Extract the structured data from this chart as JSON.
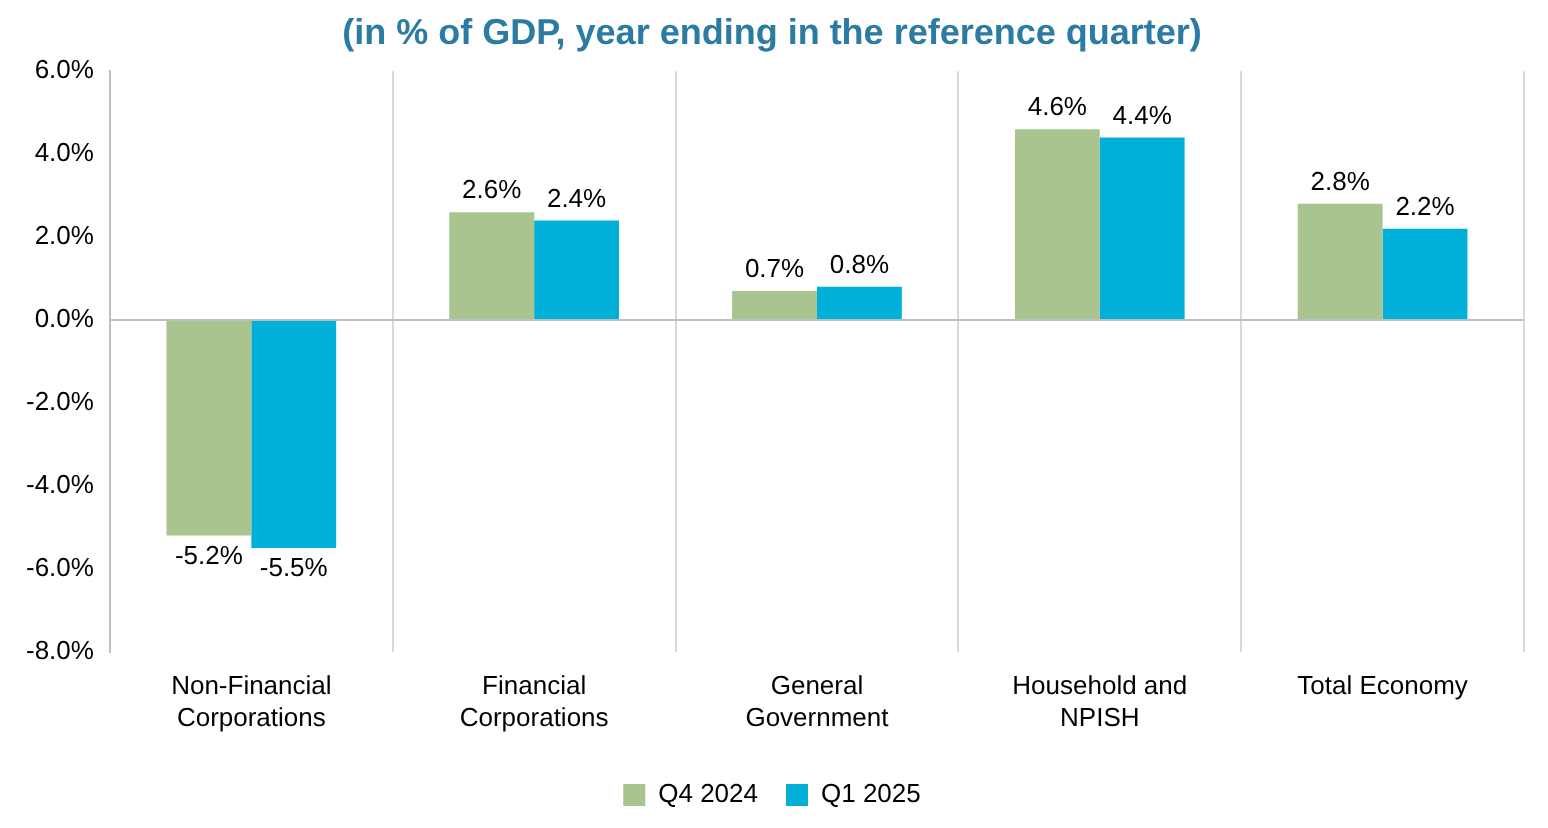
{
  "chart_data": {
    "type": "bar",
    "title": "(in % of GDP, year ending in the reference quarter)",
    "categories": [
      "Non-Financial Corporations",
      "Financial Corporations",
      "General Government",
      "Household and NPISH",
      "Total Economy"
    ],
    "series": [
      {
        "name": "Q4 2024",
        "color": "#a9c48e",
        "values": [
          -5.2,
          2.6,
          0.7,
          4.6,
          2.8
        ],
        "value_labels": [
          "-5.2%",
          "2.6%",
          "0.7%",
          "4.6%",
          "2.8%"
        ]
      },
      {
        "name": "Q1 2025",
        "color": "#00b0d8",
        "values": [
          -5.5,
          2.4,
          0.8,
          4.4,
          2.2
        ],
        "value_labels": [
          "-5.5%",
          "2.4%",
          "0.8%",
          "4.4%",
          "2.2%"
        ]
      }
    ],
    "ylim": [
      -8,
      6
    ],
    "yticks": [
      {
        "value": -8,
        "label": "-8.0%"
      },
      {
        "value": -6,
        "label": "-6.0%"
      },
      {
        "value": -4,
        "label": "-4.0%"
      },
      {
        "value": -2,
        "label": "-2.0%"
      },
      {
        "value": 0,
        "label": "0.0%"
      },
      {
        "value": 2,
        "label": "2.0%"
      },
      {
        "value": 4,
        "label": "4.0%"
      },
      {
        "value": 6,
        "label": "6.0%"
      }
    ],
    "grid": "x",
    "legend": "bottom"
  }
}
